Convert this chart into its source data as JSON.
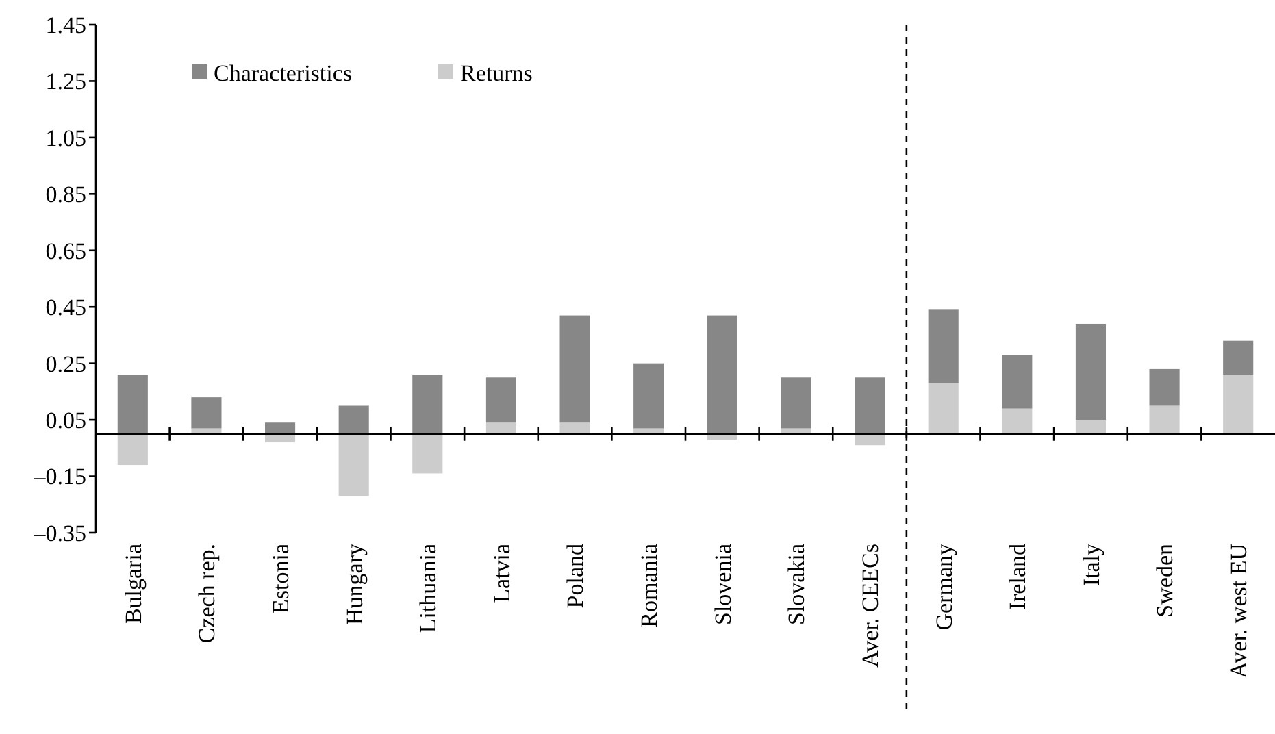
{
  "chart_data": {
    "type": "bar",
    "stacked": true,
    "categories": [
      "Bulgaria",
      "Czech rep.",
      "Estonia",
      "Hungary",
      "Lithuania",
      "Latvia",
      "Poland",
      "Romania",
      "Slovenia",
      "Slovakia",
      "Aver. CEECs",
      "Germany",
      "Ireland",
      "Italy",
      "Sweden",
      "Aver. west EU"
    ],
    "series": [
      {
        "name": "Returns",
        "color": "#cccccc",
        "values": [
          -0.11,
          0.02,
          -0.03,
          -0.22,
          -0.14,
          0.04,
          0.04,
          0.02,
          -0.02,
          0.02,
          -0.04,
          0.18,
          0.09,
          0.05,
          0.1,
          0.21
        ]
      },
      {
        "name": "Characteristics",
        "color": "#878787",
        "values": [
          0.21,
          0.11,
          0.04,
          0.1,
          0.21,
          0.16,
          0.38,
          0.23,
          0.42,
          0.18,
          0.2,
          0.26,
          0.19,
          0.34,
          0.13,
          0.12
        ]
      }
    ],
    "ylim": [
      -0.35,
      1.45
    ],
    "yticks": [
      {
        "value": -0.35,
        "label": "–0.35"
      },
      {
        "value": -0.15,
        "label": "–0.15"
      },
      0.05,
      0.25,
      0.45,
      0.65,
      0.85,
      1.05,
      1.25,
      1.45
    ],
    "legend": "top left",
    "grid": false
  }
}
